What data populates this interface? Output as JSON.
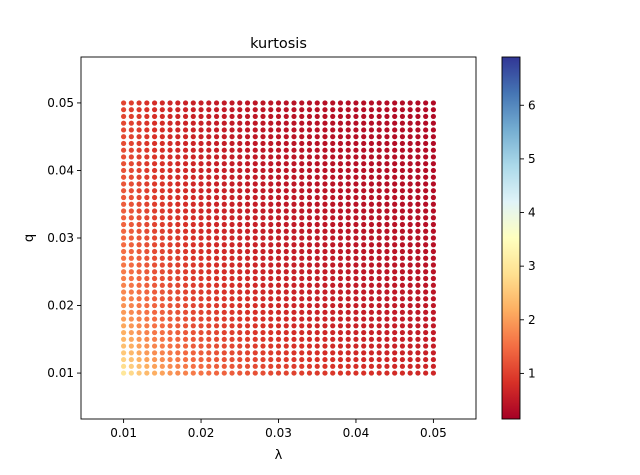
{
  "chart_data": {
    "type": "scatter",
    "title": "kurtosis",
    "xlabel": "λ",
    "ylabel": "q",
    "xlim": [
      0.0045,
      0.0555
    ],
    "ylim": [
      0.0032,
      0.0568
    ],
    "x_ticks": [
      "0.01",
      "0.02",
      "0.03",
      "0.04",
      "0.05"
    ],
    "y_ticks": [
      "0.01",
      "0.02",
      "0.03",
      "0.04",
      "0.05"
    ],
    "grid": {
      "x_start": 0.01,
      "x_end": 0.05,
      "x_count": 41,
      "y_start": 0.01,
      "y_end": 0.05,
      "y_count": 41
    },
    "color_value_model": "c = 0.12 + 0.00115 / (λ · q^0.7), capped at 6.9",
    "colormap": "RdYlBu",
    "colorbar": {
      "ticks": [
        "1",
        "2",
        "3",
        "4",
        "5",
        "6"
      ],
      "range": [
        0.15,
        6.9
      ]
    },
    "grid_on": false,
    "legend": "none"
  }
}
